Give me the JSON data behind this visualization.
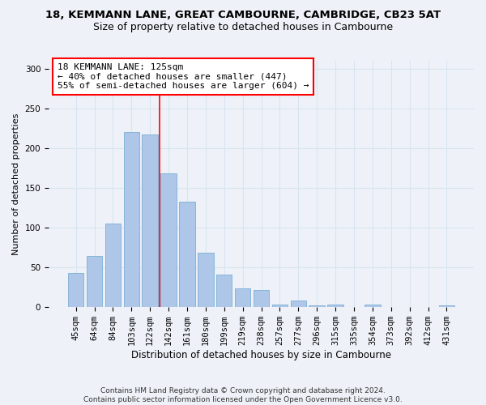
{
  "title": "18, KEMMANN LANE, GREAT CAMBOURNE, CAMBRIDGE, CB23 5AT",
  "subtitle": "Size of property relative to detached houses in Cambourne",
  "xlabel": "Distribution of detached houses by size in Cambourne",
  "ylabel": "Number of detached properties",
  "categories": [
    "45sqm",
    "64sqm",
    "84sqm",
    "103sqm",
    "122sqm",
    "142sqm",
    "161sqm",
    "180sqm",
    "199sqm",
    "219sqm",
    "238sqm",
    "257sqm",
    "277sqm",
    "296sqm",
    "315sqm",
    "335sqm",
    "354sqm",
    "373sqm",
    "392sqm",
    "412sqm",
    "431sqm"
  ],
  "values": [
    43,
    64,
    105,
    220,
    217,
    168,
    133,
    68,
    41,
    24,
    22,
    3,
    8,
    2,
    3,
    0,
    3,
    0,
    0,
    0,
    2
  ],
  "bar_color": "#aec6e8",
  "bar_edge_color": "#7aafd4",
  "vline_color": "red",
  "vline_position": 4.5,
  "annotation_text": "18 KEMMANN LANE: 125sqm\n← 40% of detached houses are smaller (447)\n55% of semi-detached houses are larger (604) →",
  "annotation_box_color": "white",
  "annotation_box_edge_color": "red",
  "ylim": [
    0,
    310
  ],
  "yticks": [
    0,
    50,
    100,
    150,
    200,
    250,
    300
  ],
  "grid_color": "#d8e4f0",
  "background_color": "#eef2f8",
  "footer": "Contains HM Land Registry data © Crown copyright and database right 2024.\nContains public sector information licensed under the Open Government Licence v3.0.",
  "title_fontsize": 9.5,
  "subtitle_fontsize": 9,
  "xlabel_fontsize": 8.5,
  "ylabel_fontsize": 8,
  "tick_fontsize": 7.5,
  "annotation_fontsize": 8,
  "footer_fontsize": 6.5
}
